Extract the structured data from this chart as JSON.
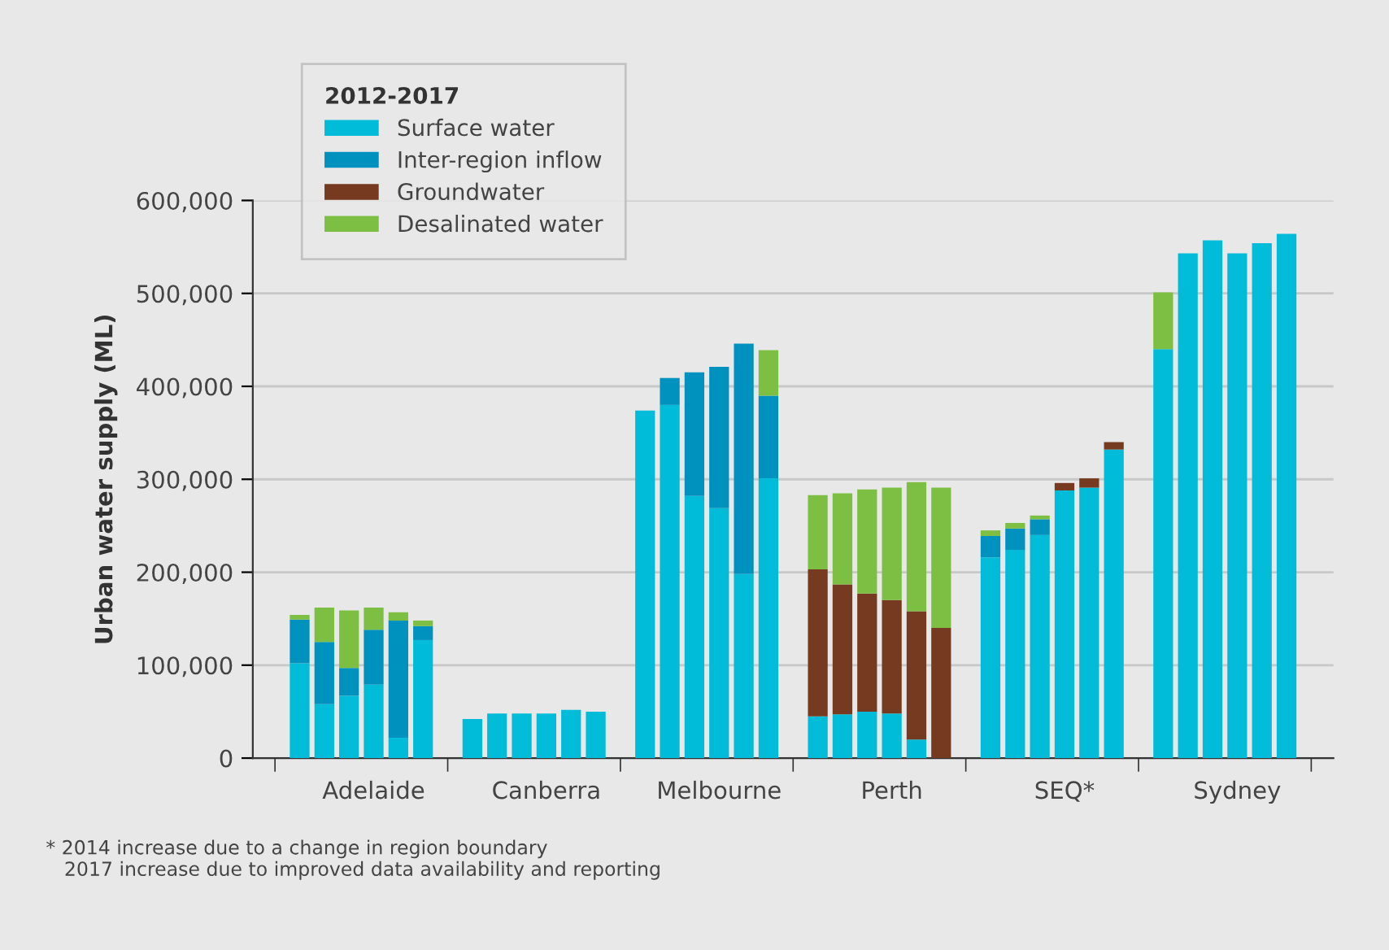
{
  "chart_data": {
    "type": "bar",
    "stacked": true,
    "ylabel": "Urban water supply (ML)",
    "legend_title": "2012-2017",
    "legend": "top left",
    "grid": "y",
    "categories": [
      null,
      null,
      null,
      "Adelaide",
      null,
      null,
      null,
      null,
      null,
      null,
      "Canberra",
      null,
      null,
      null,
      null,
      null,
      null,
      "Melbourne",
      null,
      null,
      null,
      null,
      null,
      null,
      "Perth",
      null,
      null,
      null,
      null,
      null,
      null,
      "SEQ*",
      null,
      null,
      null,
      null,
      null,
      null,
      "Sydney",
      null,
      null
    ],
    "ylim": [
      0,
      600000
    ],
    "yticks": [
      {
        "value": 0,
        "label": "0"
      },
      {
        "value": 100000,
        "label": "100,000"
      },
      {
        "value": 200000,
        "label": "200,000"
      },
      {
        "value": 300000,
        "label": "300,000"
      },
      {
        "value": 400000,
        "label": "400,000"
      },
      {
        "value": 500000,
        "label": "500,000"
      },
      {
        "value": 600000,
        "label": "600,000"
      }
    ],
    "series": [
      {
        "name": "Surface water",
        "color": "#00bcd8",
        "values": [
          102000,
          58000,
          67000,
          79000,
          22000,
          127000,
          null,
          42000,
          48000,
          48000,
          48000,
          52000,
          50000,
          null,
          374000,
          380000,
          282000,
          269000,
          198000,
          301000,
          null,
          45000,
          47000,
          50000,
          48000,
          20000,
          0,
          null,
          216000,
          224000,
          240000,
          288000,
          291000,
          332000,
          null,
          440000,
          543000,
          557000,
          543000,
          554000,
          564000
        ]
      },
      {
        "name": "Inter-region inflow",
        "color": "#0092bf",
        "values": [
          47000,
          67000,
          30000,
          59000,
          126000,
          15000,
          null,
          0,
          0,
          0,
          0,
          0,
          0,
          null,
          0,
          29000,
          133000,
          152000,
          248000,
          89000,
          null,
          0,
          0,
          0,
          0,
          0,
          0,
          null,
          23000,
          23000,
          17000,
          0,
          0,
          0,
          null,
          0,
          0,
          0,
          0,
          0,
          0
        ]
      },
      {
        "name": "Groundwater",
        "color": "#753a20",
        "values": [
          0,
          0,
          0,
          0,
          0,
          0,
          null,
          0,
          0,
          0,
          0,
          0,
          0,
          null,
          0,
          0,
          0,
          0,
          0,
          0,
          null,
          158000,
          140000,
          127000,
          122000,
          138000,
          140000,
          null,
          0,
          0,
          0,
          8000,
          10000,
          8000,
          null,
          0,
          0,
          0,
          0,
          0,
          0
        ]
      },
      {
        "name": "Desalinated water",
        "color": "#7cbf42",
        "values": [
          5000,
          37000,
          62000,
          24000,
          9000,
          6000,
          null,
          0,
          0,
          0,
          0,
          0,
          0,
          null,
          0,
          0,
          0,
          0,
          0,
          49000,
          null,
          80000,
          98000,
          112000,
          121000,
          139000,
          151000,
          null,
          6000,
          6000,
          4000,
          0,
          0,
          0,
          null,
          61000,
          0,
          0,
          0,
          0,
          0
        ]
      }
    ],
    "annotations": [
      "* 2014 increase due to a change in region boundary\n   2017 increase due to improved data availability and reporting"
    ]
  }
}
